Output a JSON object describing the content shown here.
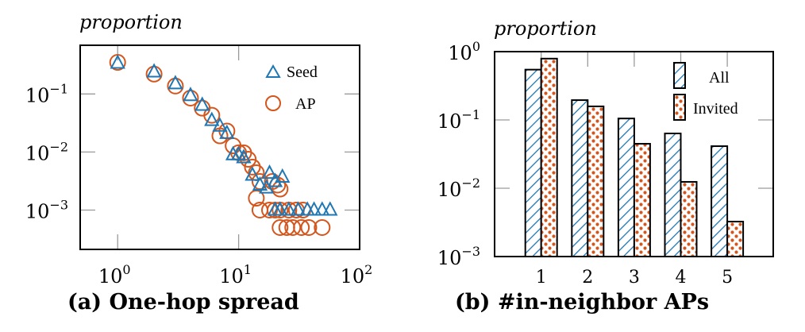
{
  "colors": {
    "seed": "#1f77b4",
    "ap": "#d4561c",
    "all": "#1f77b4",
    "invited": "#d4561c"
  },
  "chart_data": [
    {
      "type": "scatter",
      "panel": "a",
      "title": "(a) One-hop spread",
      "xlabel": "",
      "ylabel": "proportion",
      "xscale": "log",
      "yscale": "log",
      "xlim": [
        0.49,
        100
      ],
      "ylim": [
        0.00021,
        0.69
      ],
      "xticks": [
        {
          "value": 1,
          "base": "10",
          "exp": "0"
        },
        {
          "value": 10,
          "base": "10",
          "exp": "1"
        },
        {
          "value": 100,
          "base": "10",
          "exp": "2"
        }
      ],
      "yticks": [
        {
          "value": 0.1,
          "base": "10",
          "exp": "−1"
        },
        {
          "value": 0.01,
          "base": "10",
          "exp": "−2"
        },
        {
          "value": 0.001,
          "base": "10",
          "exp": "−3"
        }
      ],
      "grid": false,
      "legend_position": "top-right",
      "series": [
        {
          "name": "Seed",
          "marker": "triangle",
          "points": [
            [
              1,
              0.34
            ],
            [
              2,
              0.24
            ],
            [
              3,
              0.15
            ],
            [
              4,
              0.094
            ],
            [
              5,
              0.064
            ],
            [
              6,
              0.035
            ],
            [
              7,
              0.028
            ],
            [
              8,
              0.021
            ],
            [
              9,
              0.009
            ],
            [
              10,
              0.009
            ],
            [
              11,
              0.008
            ],
            [
              13,
              0.004
            ],
            [
              15,
              0.0027
            ],
            [
              17,
              0.0024
            ],
            [
              18,
              0.0043
            ],
            [
              20,
              0.0031
            ],
            [
              23,
              0.0037
            ],
            [
              20,
              0.001
            ],
            [
              22,
              0.001
            ],
            [
              26,
              0.001
            ],
            [
              31,
              0.001
            ],
            [
              37,
              0.001
            ],
            [
              42,
              0.001
            ],
            [
              49,
              0.001
            ],
            [
              57,
              0.001
            ]
          ]
        },
        {
          "name": "AP",
          "marker": "circle",
          "points": [
            [
              1,
              0.35
            ],
            [
              2,
              0.22
            ],
            [
              3,
              0.137
            ],
            [
              4,
              0.085
            ],
            [
              5,
              0.057
            ],
            [
              6,
              0.043
            ],
            [
              7,
              0.019
            ],
            [
              8,
              0.023
            ],
            [
              9,
              0.0128
            ],
            [
              10,
              0.0097
            ],
            [
              11,
              0.0097
            ],
            [
              12,
              0.0075
            ],
            [
              13,
              0.0055
            ],
            [
              14,
              0.0044
            ],
            [
              15,
              0.0031
            ],
            [
              19,
              0.0031
            ],
            [
              21,
              0.0027
            ],
            [
              22,
              0.0023
            ],
            [
              14,
              0.0016
            ],
            [
              15,
              0.001
            ],
            [
              18,
              0.001
            ],
            [
              20,
              0.001
            ],
            [
              22,
              0.001
            ],
            [
              26,
              0.001
            ],
            [
              30,
              0.001
            ],
            [
              34,
              0.001
            ],
            [
              22,
              0.0005
            ],
            [
              25,
              0.0005
            ],
            [
              28,
              0.0005
            ],
            [
              33,
              0.0005
            ],
            [
              38,
              0.0005
            ],
            [
              49,
              0.0005
            ]
          ]
        }
      ]
    },
    {
      "type": "bar",
      "panel": "b",
      "title": "(b) #in-neighbor APs",
      "xlabel": "",
      "ylabel": "proportion",
      "yscale": "log",
      "ylim": [
        0.001,
        1
      ],
      "yticks": [
        {
          "value": 1,
          "base": "10",
          "exp": "0"
        },
        {
          "value": 0.1,
          "base": "10",
          "exp": "−1"
        },
        {
          "value": 0.01,
          "base": "10",
          "exp": "−2"
        },
        {
          "value": 0.001,
          "base": "10",
          "exp": "−3"
        }
      ],
      "categories": [
        "1",
        "2",
        "3",
        "4",
        "5"
      ],
      "grid": false,
      "legend_position": "top-right",
      "series": [
        {
          "name": "All",
          "pattern": "hatch",
          "values": [
            0.545,
            0.195,
            0.105,
            0.0634,
            0.0413
          ]
        },
        {
          "name": "Invited",
          "pattern": "dots",
          "values": [
            0.79,
            0.158,
            0.0448,
            0.0124,
            0.00325
          ]
        }
      ]
    }
  ]
}
